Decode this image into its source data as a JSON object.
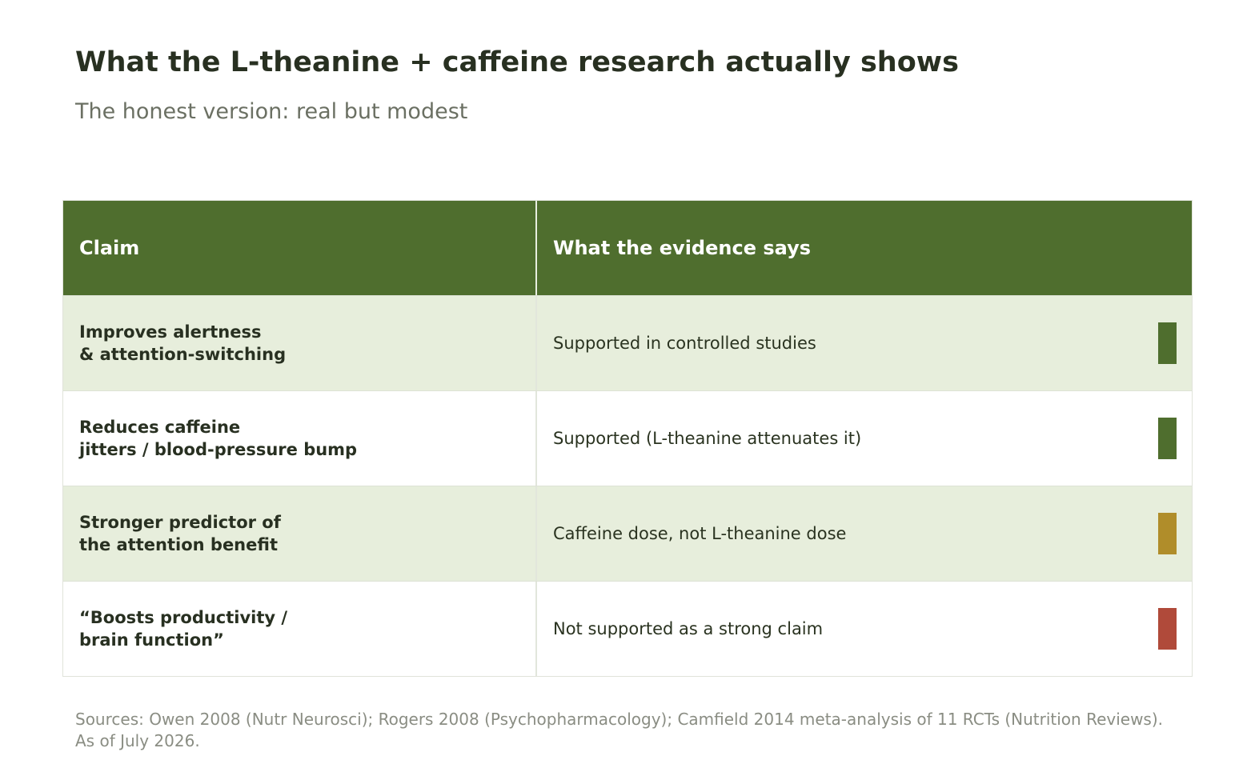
{
  "title": "What the L-theanine + caffeine research actually shows",
  "subtitle": "The honest version: real but modest",
  "table": {
    "headers": {
      "claim": "Claim",
      "evidence": "What the evidence says"
    },
    "rows": [
      {
        "claim": "Improves alertness\n& attention-switching",
        "evidence": "Supported in controlled studies",
        "status_color": "#4f6e2e"
      },
      {
        "claim": "Reduces caffeine\njitters / blood-pressure bump",
        "evidence": "Supported (L-theanine attenuates it)",
        "status_color": "#4f6e2e"
      },
      {
        "claim": "Stronger predictor of\nthe attention benefit",
        "evidence": "Caffeine dose, not L-theanine dose",
        "status_color": "#b08d2a"
      },
      {
        "claim": "“Boosts productivity /\nbrain function”",
        "evidence": "Not supported as a strong claim",
        "status_color": "#b04a3a"
      }
    ]
  },
  "sources": "Sources: Owen 2008 (Nutr Neurosci); Rogers 2008 (Psychopharmacology); Camfield 2014 meta-analysis of 11 RCTs (Nutrition Reviews). As of July 2026.",
  "colors": {
    "header_bg": "#4f6e2e",
    "row_shade": "#e7eedc",
    "title": "#283021"
  }
}
